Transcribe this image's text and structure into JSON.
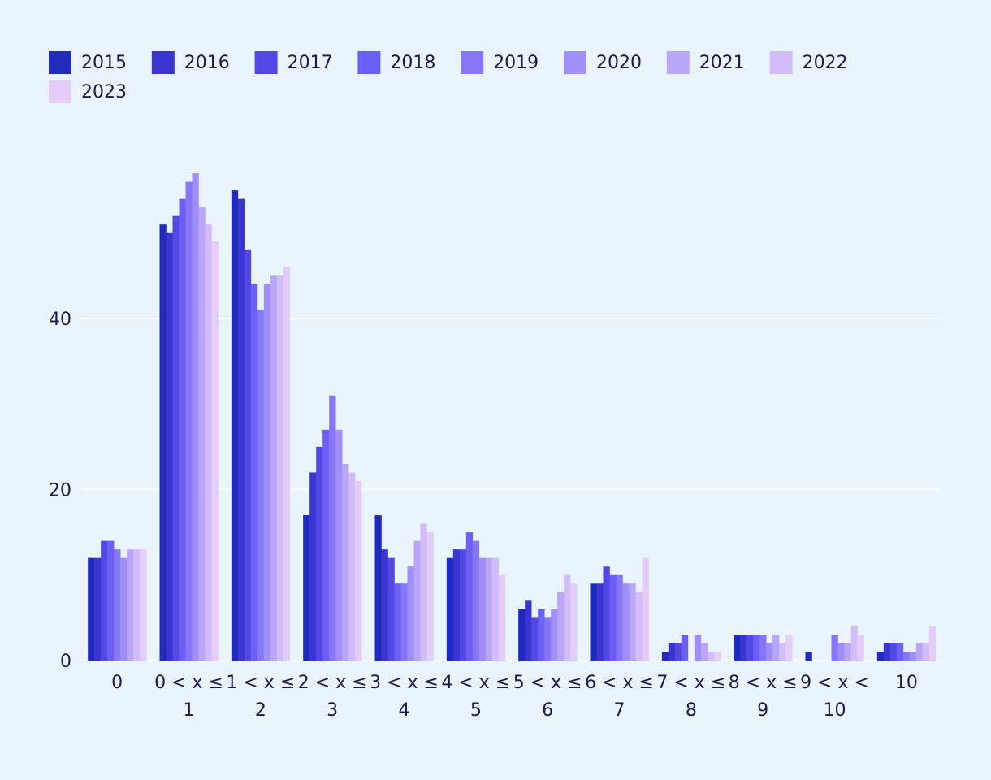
{
  "chart_data": {
    "type": "bar",
    "title": "",
    "xlabel": "",
    "ylabel": "",
    "ylim": [
      0,
      60
    ],
    "yticks": [
      0,
      20,
      40
    ],
    "grid": true,
    "legend_position": "top-left",
    "categories": [
      [
        "0"
      ],
      [
        "0 < x ≤",
        "1"
      ],
      [
        "1 < x ≤",
        "2"
      ],
      [
        "2 < x ≤",
        "3"
      ],
      [
        "3 < x ≤",
        "4"
      ],
      [
        "4 < x ≤",
        "5"
      ],
      [
        "5 < x ≤",
        "6"
      ],
      [
        "6 < x ≤",
        "7"
      ],
      [
        "7 < x ≤",
        "8"
      ],
      [
        "8 < x ≤",
        "9"
      ],
      [
        "9 < x <",
        "10"
      ],
      [
        "10"
      ]
    ],
    "series": [
      {
        "name": "2015",
        "color": "#1f2bbd",
        "values": [
          12,
          51,
          55,
          17,
          17,
          12,
          6,
          9,
          1,
          3,
          1,
          1
        ]
      },
      {
        "name": "2016",
        "color": "#3a35d0",
        "values": [
          12,
          50,
          54,
          22,
          13,
          13,
          7,
          9,
          2,
          3,
          0,
          2
        ]
      },
      {
        "name": "2017",
        "color": "#5348e3",
        "values": [
          14,
          52,
          48,
          25,
          12,
          13,
          5,
          11,
          2,
          3,
          0,
          2
        ]
      },
      {
        "name": "2018",
        "color": "#6b5ff5",
        "values": [
          14,
          54,
          44,
          27,
          9,
          15,
          6,
          10,
          3,
          3,
          0,
          2
        ]
      },
      {
        "name": "2019",
        "color": "#8677f7",
        "values": [
          13,
          56,
          41,
          31,
          9,
          14,
          5,
          10,
          0,
          3,
          3,
          1
        ]
      },
      {
        "name": "2020",
        "color": "#a08ff8",
        "values": [
          12,
          57,
          44,
          27,
          11,
          12,
          6,
          9,
          3,
          2,
          2,
          1
        ]
      },
      {
        "name": "2021",
        "color": "#b9a6f9",
        "values": [
          13,
          53,
          45,
          23,
          14,
          12,
          8,
          9,
          2,
          3,
          2,
          2
        ]
      },
      {
        "name": "2022",
        "color": "#d2bcfa",
        "values": [
          13,
          51,
          45,
          22,
          16,
          12,
          10,
          8,
          1,
          2,
          4,
          2
        ]
      },
      {
        "name": "2023",
        "color": "#e5cdfb",
        "values": [
          13,
          49,
          46,
          21,
          15,
          10,
          9,
          12,
          1,
          3,
          3,
          4
        ]
      }
    ]
  }
}
